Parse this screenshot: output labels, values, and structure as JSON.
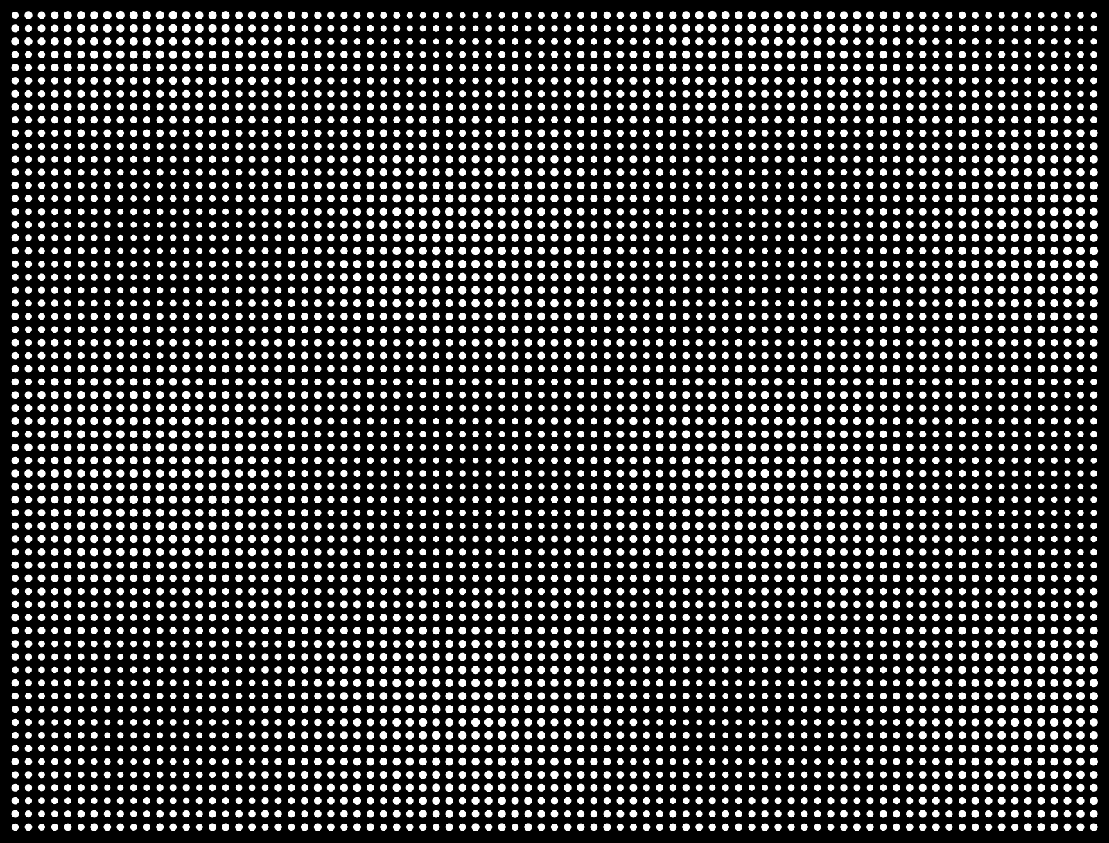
{
  "pattern": {
    "columns": 83,
    "rows": 63,
    "background_color": "#000000",
    "dot_color": "#ffffff"
  }
}
